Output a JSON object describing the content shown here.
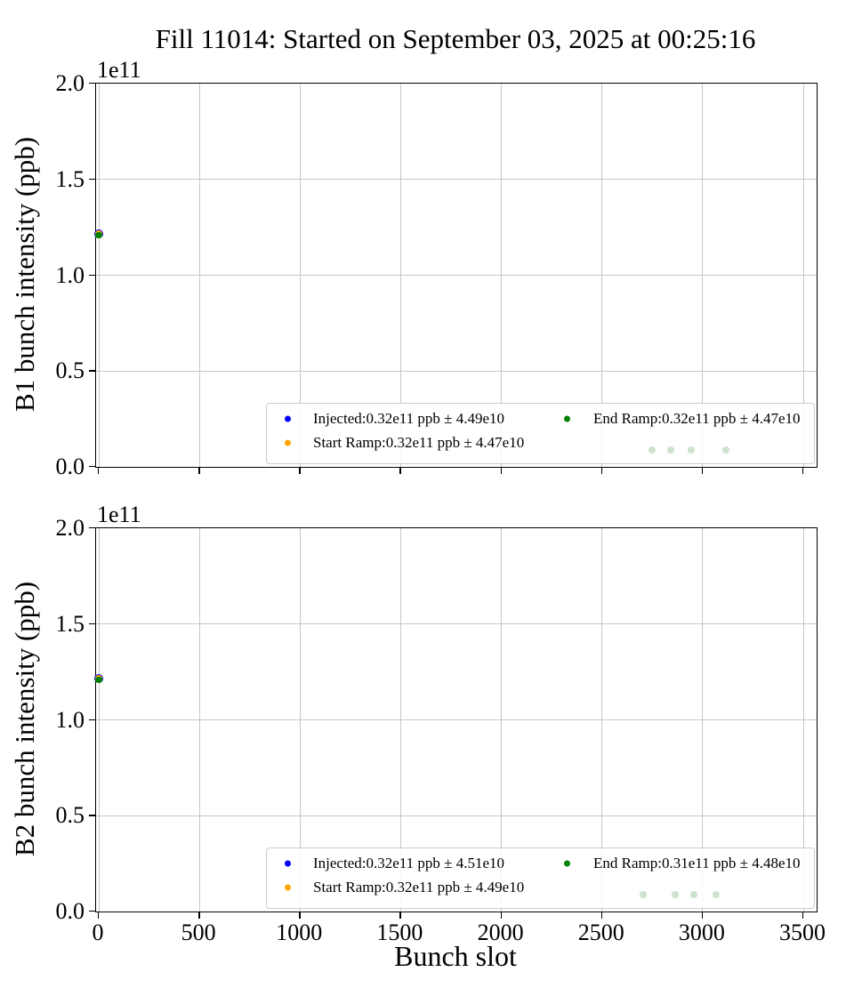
{
  "title": "Fill 11014: Started on September 03, 2025 at 00:25:16",
  "xlabel": "Bunch slot",
  "offset_label": "1e11",
  "colors": {
    "injected": "#0000ff",
    "start_ramp": "#ffa500",
    "end_ramp": "#008000",
    "faint_dot": "#cde3cd",
    "grid": "#c6c6c6",
    "spine": "#000000",
    "legend_border": "#cccccc"
  },
  "chart_data": [
    {
      "type": "scatter",
      "ylabel": "B1 bunch intensity (ppb)",
      "xlabel": "Bunch slot",
      "xlim": [
        -60,
        3570
      ],
      "ylim": [
        0,
        200000000000.0
      ],
      "xticks": [
        0,
        500,
        1000,
        1500,
        2000,
        2500,
        3000,
        3500
      ],
      "xtick_labels": [
        "0",
        "500",
        "1000",
        "1500",
        "2000",
        "2500",
        "3000",
        "3500"
      ],
      "ytick_values": [
        0,
        50000000000.0,
        100000000000.0,
        150000000000.0,
        200000000000.0
      ],
      "ytick_labels": [
        "0.0",
        "0.5",
        "1.0",
        "1.5",
        "2.0"
      ],
      "grid": true,
      "series": [
        {
          "name": "Injected",
          "color_key": "injected",
          "points": [
            [
              0,
              121000000000.0
            ]
          ]
        },
        {
          "name": "Start Ramp",
          "color_key": "start_ramp",
          "points": [
            [
              0,
              121000000000.0
            ]
          ]
        },
        {
          "name": "End Ramp",
          "color_key": "end_ramp",
          "points": [
            [
              0,
              121000000000.0
            ]
          ]
        }
      ],
      "faint_points": [
        [
          2750,
          9000000000.0
        ],
        [
          2840,
          9000000000.0
        ],
        [
          2945,
          9000000000.0
        ],
        [
          3115,
          9000000000.0
        ]
      ],
      "legend": {
        "position": "lower right",
        "entries": [
          {
            "color_key": "injected",
            "label": "Injected:0.32e11 ppb ± 4.49e10"
          },
          {
            "color_key": "start_ramp",
            "label": "Start Ramp:0.32e11 ppb ± 4.47e10"
          },
          {
            "color_key": "end_ramp",
            "label": "End Ramp:0.32e11 ppb ± 4.47e10"
          }
        ]
      }
    },
    {
      "type": "scatter",
      "ylabel": "B2 bunch intensity (ppb)",
      "xlabel": "Bunch slot",
      "xlim": [
        -60,
        3570
      ],
      "ylim": [
        0,
        200000000000.0
      ],
      "xticks": [
        0,
        500,
        1000,
        1500,
        2000,
        2500,
        3000,
        3500
      ],
      "xtick_labels": [
        "0",
        "500",
        "1000",
        "1500",
        "2000",
        "2500",
        "3000",
        "3500"
      ],
      "ytick_values": [
        0,
        50000000000.0,
        100000000000.0,
        150000000000.0,
        200000000000.0
      ],
      "ytick_labels": [
        "0.0",
        "0.5",
        "1.0",
        "1.5",
        "2.0"
      ],
      "grid": true,
      "series": [
        {
          "name": "Injected",
          "color_key": "injected",
          "points": [
            [
              0,
              121000000000.0
            ]
          ]
        },
        {
          "name": "Start Ramp",
          "color_key": "start_ramp",
          "points": [
            [
              0,
              121000000000.0
            ]
          ]
        },
        {
          "name": "End Ramp",
          "color_key": "end_ramp",
          "points": [
            [
              0,
              121000000000.0
            ]
          ]
        }
      ],
      "faint_points": [
        [
          2705,
          9000000000.0
        ],
        [
          2865,
          9000000000.0
        ],
        [
          2955,
          9000000000.0
        ],
        [
          3065,
          9000000000.0
        ]
      ],
      "legend": {
        "position": "lower right",
        "entries": [
          {
            "color_key": "injected",
            "label": "Injected:0.32e11 ppb ± 4.51e10"
          },
          {
            "color_key": "start_ramp",
            "label": "Start Ramp:0.32e11 ppb ± 4.49e10"
          },
          {
            "color_key": "end_ramp",
            "label": "End Ramp:0.31e11 ppb ± 4.48e10"
          }
        ]
      }
    }
  ]
}
